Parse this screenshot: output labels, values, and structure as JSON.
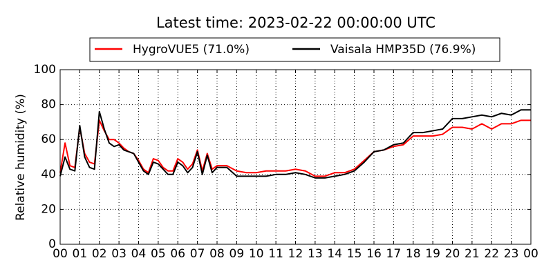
{
  "chart_data": {
    "type": "line",
    "title": "Latest time: 2023-02-22 00:00:00 UTC",
    "ylabel": "Relative humidity (%)",
    "x": [
      0,
      0.25,
      0.5,
      0.75,
      1,
      1.25,
      1.5,
      1.75,
      2,
      2.25,
      2.5,
      2.75,
      3,
      3.25,
      3.5,
      3.75,
      4,
      4.25,
      4.5,
      4.75,
      5,
      5.25,
      5.5,
      5.75,
      6,
      6.25,
      6.5,
      6.75,
      7,
      7.25,
      7.5,
      7.75,
      8,
      8.5,
      9,
      9.5,
      10,
      10.5,
      11,
      11.5,
      12,
      12.5,
      13,
      13.5,
      14,
      14.5,
      15,
      15.5,
      16,
      16.5,
      17,
      17.5,
      18,
      18.5,
      19,
      19.5,
      20,
      20.5,
      21,
      21.5,
      22,
      22.5,
      23,
      23.5,
      24
    ],
    "series": [
      {
        "name": "HygroVUE5 (71.0%)",
        "color": "#ff0000",
        "values": [
          41,
          58,
          45,
          44,
          67,
          52,
          47,
          46,
          71,
          65,
          60,
          60,
          58,
          55,
          53,
          52,
          48,
          43,
          41,
          49,
          48,
          44,
          42,
          42,
          49,
          47,
          43,
          46,
          54,
          42,
          52,
          43,
          45,
          45,
          42,
          41,
          41,
          42,
          42,
          42,
          43,
          42,
          39,
          39,
          41,
          41,
          43,
          48,
          53,
          54,
          56,
          57,
          62,
          62,
          62,
          63,
          67,
          67,
          66,
          69,
          66,
          69,
          69,
          71,
          71
        ]
      },
      {
        "name": "Vaisala HMP35D (76.9%)",
        "color": "#000000",
        "values": [
          39,
          50,
          43,
          42,
          68,
          50,
          44,
          43,
          76,
          66,
          58,
          56,
          57,
          54,
          53,
          52,
          47,
          42,
          40,
          47,
          46,
          43,
          40,
          40,
          47,
          45,
          41,
          44,
          53,
          40,
          51,
          41,
          44,
          44,
          39,
          39,
          39,
          39,
          40,
          40,
          41,
          40,
          38,
          38,
          39,
          40,
          42,
          47,
          53,
          54,
          57,
          58,
          64,
          64,
          65,
          66,
          72,
          72,
          73,
          74,
          73,
          75,
          74,
          77,
          77
        ]
      }
    ],
    "xlim": [
      0,
      24
    ],
    "xticks": [
      {
        "value": 0,
        "label": "00"
      },
      {
        "value": 1,
        "label": "01"
      },
      {
        "value": 2,
        "label": "02"
      },
      {
        "value": 3,
        "label": "03"
      },
      {
        "value": 4,
        "label": "04"
      },
      {
        "value": 5,
        "label": "05"
      },
      {
        "value": 6,
        "label": "06"
      },
      {
        "value": 7,
        "label": "07"
      },
      {
        "value": 8,
        "label": "08"
      },
      {
        "value": 9,
        "label": "09"
      },
      {
        "value": 10,
        "label": "10"
      },
      {
        "value": 11,
        "label": "11"
      },
      {
        "value": 12,
        "label": "12"
      },
      {
        "value": 13,
        "label": "13"
      },
      {
        "value": 14,
        "label": "14"
      },
      {
        "value": 15,
        "label": "15"
      },
      {
        "value": 16,
        "label": "16"
      },
      {
        "value": 17,
        "label": "17"
      },
      {
        "value": 18,
        "label": "18"
      },
      {
        "value": 19,
        "label": "19"
      },
      {
        "value": 20,
        "label": "20"
      },
      {
        "value": 21,
        "label": "21"
      },
      {
        "value": 22,
        "label": "22"
      },
      {
        "value": 23,
        "label": "23"
      },
      {
        "value": 24,
        "label": "00"
      }
    ],
    "ylim": [
      0,
      100
    ],
    "yticks": [
      0,
      20,
      40,
      60,
      80,
      100
    ],
    "grid": true
  }
}
